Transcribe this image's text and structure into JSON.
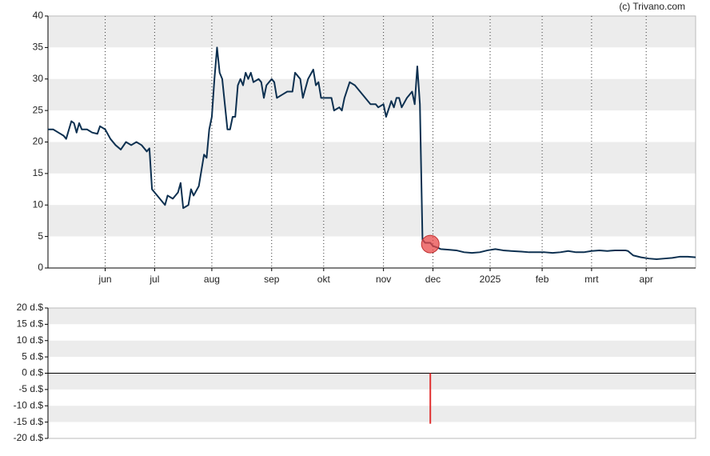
{
  "chart_data": [
    {
      "type": "line",
      "credit": "(c) Trivano.com",
      "x": [
        0,
        2,
        4,
        6,
        7,
        9,
        10,
        11,
        12,
        13,
        15,
        17,
        19,
        20,
        22,
        24,
        26,
        28,
        30,
        32,
        34,
        36,
        38,
        39,
        40,
        41,
        43,
        45,
        46,
        48,
        50,
        51,
        52,
        54,
        55,
        56,
        58,
        60,
        61,
        62,
        63,
        64,
        65,
        66,
        67,
        69,
        70,
        71,
        72,
        73,
        74,
        75,
        76,
        77,
        78,
        79,
        81,
        82,
        83,
        84,
        86,
        87,
        88,
        90,
        92,
        94,
        95,
        96,
        97,
        98,
        100,
        102,
        103,
        104,
        105,
        107,
        109,
        110,
        112,
        113,
        114,
        116,
        118,
        120,
        122,
        124,
        126,
        127,
        129,
        130,
        132,
        133,
        134,
        135,
        136,
        138,
        140,
        141,
        142,
        143,
        144,
        145,
        147,
        148,
        150,
        151,
        154,
        157,
        160,
        163,
        166,
        169,
        172,
        175,
        178,
        182,
        185,
        188,
        191,
        194,
        197,
        200,
        203,
        206,
        209,
        212,
        215,
        218,
        222,
        223,
        225,
        228,
        231,
        234,
        237,
        240,
        243,
        246,
        249
      ],
      "series": [
        {
          "color": "#0d3050",
          "values": [
            22,
            22,
            21.5,
            21,
            20.5,
            23.3,
            23,
            21.5,
            23,
            22,
            22,
            21.5,
            21.3,
            22.5,
            22,
            20.5,
            19.5,
            18.8,
            20,
            19.5,
            20,
            19.5,
            18.5,
            19,
            12.5,
            12,
            11,
            10,
            11.5,
            11,
            12,
            13.5,
            9.5,
            10,
            12.5,
            11.5,
            13,
            18,
            17.5,
            22,
            24,
            30,
            35,
            31,
            30,
            22,
            22,
            24,
            24,
            29,
            30,
            29,
            31,
            30,
            31,
            29.5,
            30,
            29.5,
            27,
            29,
            30,
            29.5,
            27,
            27.5,
            28,
            28,
            31,
            30.5,
            30,
            27,
            30,
            31.5,
            29,
            29.5,
            27,
            27,
            27,
            25,
            25.5,
            25,
            27,
            29.5,
            29,
            28,
            27,
            26,
            26,
            25.5,
            26,
            24,
            26.5,
            25.5,
            27,
            27,
            25.5,
            27,
            28,
            26,
            32,
            26,
            4.5,
            4,
            4,
            3.5,
            3.2,
            3,
            2.9,
            2.8,
            2.5,
            2.4,
            2.5,
            2.8,
            3,
            2.8,
            2.7,
            2.6,
            2.5,
            2.5,
            2.5,
            2.4,
            2.5,
            2.7,
            2.5,
            2.5,
            2.7,
            2.8,
            2.7,
            2.8,
            2.8,
            2.7,
            2,
            1.7,
            1.5,
            1.4,
            1.5,
            1.6,
            1.8,
            1.8,
            1.7
          ]
        }
      ],
      "marker": {
        "x": 147,
        "y": 3.8,
        "color": "#e84a4a"
      },
      "xlim": [
        0,
        249
      ],
      "xticks": [
        {
          "value": 22,
          "label": "jun"
        },
        {
          "value": 41,
          "label": "jul"
        },
        {
          "value": 63,
          "label": "aug"
        },
        {
          "value": 86,
          "label": "sep"
        },
        {
          "value": 106,
          "label": "okt"
        },
        {
          "value": 129,
          "label": "nov"
        },
        {
          "value": 148,
          "label": "dec"
        },
        {
          "value": 170,
          "label": "2025"
        },
        {
          "value": 190,
          "label": "feb"
        },
        {
          "value": 209,
          "label": "mrt"
        },
        {
          "value": 230,
          "label": "apr"
        }
      ],
      "ylim": [
        0,
        40
      ],
      "yticks": [
        0,
        5,
        10,
        15,
        20,
        25,
        30,
        35,
        40
      ],
      "grid": true
    },
    {
      "type": "bar",
      "x": [
        147
      ],
      "values": [
        -15.5
      ],
      "color": "#e03030",
      "xlim": [
        0,
        249
      ],
      "ylim": [
        -20,
        20
      ],
      "yticks": [
        {
          "value": 20,
          "label": "20 d.$"
        },
        {
          "value": 15,
          "label": "15 d.$"
        },
        {
          "value": 10,
          "label": "10 d.$"
        },
        {
          "value": 5,
          "label": "5 d.$"
        },
        {
          "value": 0,
          "label": "0 d.$"
        },
        {
          "value": -5,
          "label": "-5 d.$"
        },
        {
          "value": -10,
          "label": "-10 d.$"
        },
        {
          "value": -15,
          "label": "-15 d.$"
        },
        {
          "value": -20,
          "label": "-20 d.$"
        }
      ]
    }
  ]
}
